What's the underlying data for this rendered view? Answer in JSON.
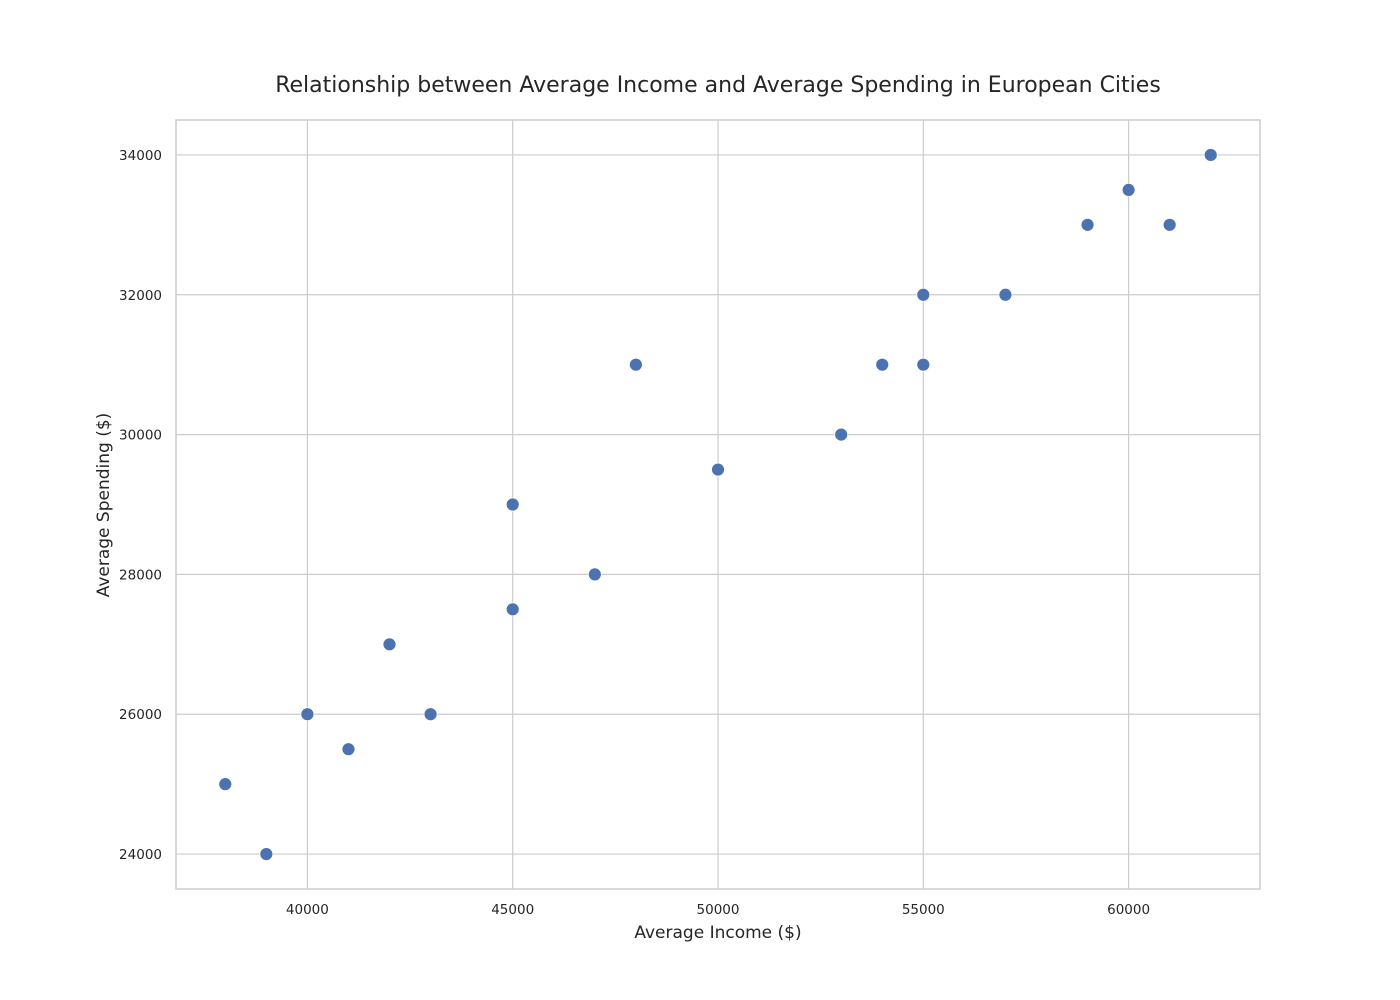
{
  "colors": {
    "point": "#4c72b0",
    "grid": "#cccccc",
    "background": "#ffffff"
  },
  "chart_data": {
    "type": "scatter",
    "title": "Relationship between Average Income and Average Spending in European Cities",
    "xlabel": "Average Income ($)",
    "ylabel": "Average Spending ($)",
    "xlim": [
      36800,
      63200
    ],
    "ylim": [
      23500,
      34500
    ],
    "xticks": [
      40000,
      45000,
      50000,
      55000,
      60000
    ],
    "yticks": [
      24000,
      26000,
      28000,
      30000,
      32000,
      34000
    ],
    "grid": true,
    "series": [
      {
        "points": [
          {
            "x": 38000,
            "y": 25000
          },
          {
            "x": 39000,
            "y": 24000
          },
          {
            "x": 40000,
            "y": 26000
          },
          {
            "x": 41000,
            "y": 25500
          },
          {
            "x": 42000,
            "y": 27000
          },
          {
            "x": 43000,
            "y": 26000
          },
          {
            "x": 45000,
            "y": 29000
          },
          {
            "x": 45000,
            "y": 27500
          },
          {
            "x": 47000,
            "y": 28000
          },
          {
            "x": 48000,
            "y": 31000
          },
          {
            "x": 50000,
            "y": 29500
          },
          {
            "x": 53000,
            "y": 30000
          },
          {
            "x": 54000,
            "y": 31000
          },
          {
            "x": 55000,
            "y": 32000
          },
          {
            "x": 55000,
            "y": 31000
          },
          {
            "x": 57000,
            "y": 32000
          },
          {
            "x": 59000,
            "y": 33000
          },
          {
            "x": 60000,
            "y": 33500
          },
          {
            "x": 61000,
            "y": 33000
          },
          {
            "x": 62000,
            "y": 34000
          }
        ]
      }
    ]
  }
}
